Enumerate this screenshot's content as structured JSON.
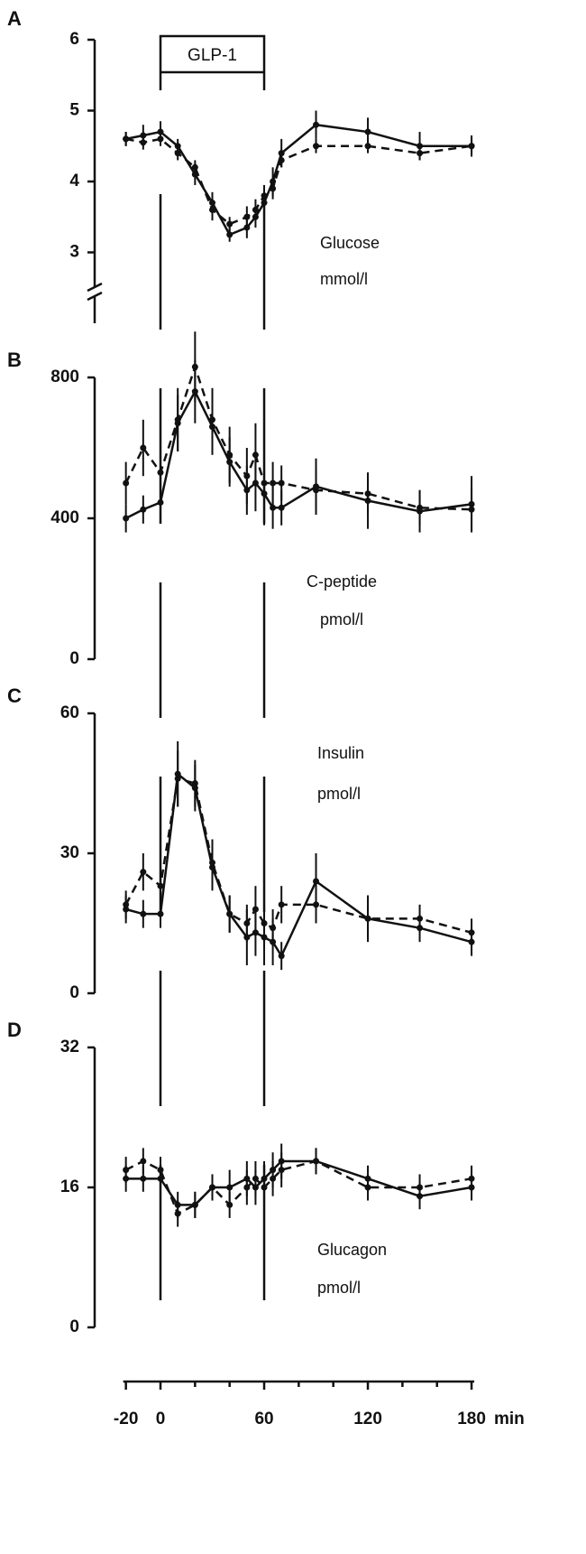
{
  "chart_data": [
    {
      "type": "line",
      "panel_label": "A",
      "ylabel_lines": [
        "Glucose",
        "mmol/l"
      ],
      "x": [
        -20,
        -10,
        0,
        10,
        20,
        30,
        40,
        50,
        55,
        60,
        65,
        70,
        90,
        120,
        150,
        180
      ],
      "xlim": [
        -20,
        180
      ],
      "ylim": [
        2,
        6
      ],
      "yticks": [
        3,
        4,
        5,
        6
      ],
      "axis_break": true,
      "series": [
        {
          "line_style": "solid",
          "color": "#111",
          "values": [
            4.6,
            4.65,
            4.7,
            4.5,
            4.1,
            3.7,
            3.25,
            3.35,
            3.5,
            3.7,
            4.0,
            4.4,
            4.8,
            4.7,
            4.5,
            4.5
          ],
          "errors": [
            0.1,
            0.15,
            0.15,
            0.1,
            0.15,
            0.15,
            0.1,
            0.15,
            0.15,
            0.2,
            0.2,
            0.2,
            0.2,
            0.2,
            0.2,
            0.15
          ]
        },
        {
          "line_style": "dashed",
          "color": "#111",
          "values": [
            4.6,
            4.55,
            4.6,
            4.4,
            4.2,
            3.6,
            3.4,
            3.5,
            3.6,
            3.8,
            3.9,
            4.3,
            4.5,
            4.5,
            4.4,
            4.5
          ],
          "errors": [
            0.1,
            0.1,
            0.1,
            0.1,
            0.1,
            0.15,
            0.1,
            0.15,
            0.15,
            0.15,
            0.15,
            0.1,
            0.1,
            0.1,
            0.1,
            0.1
          ]
        }
      ]
    },
    {
      "type": "line",
      "panel_label": "B",
      "ylabel_lines": [
        "C-peptide",
        "pmol/l"
      ],
      "x": [
        -20,
        -10,
        0,
        10,
        20,
        30,
        40,
        50,
        55,
        60,
        65,
        70,
        90,
        120,
        150,
        180
      ],
      "xlim": [
        -20,
        180
      ],
      "ylim": [
        0,
        800
      ],
      "yticks": [
        0,
        400,
        800
      ],
      "series": [
        {
          "line_style": "solid",
          "color": "#111",
          "values": [
            400,
            425,
            445,
            670,
            760,
            660,
            560,
            480,
            500,
            470,
            430,
            430,
            490,
            450,
            420,
            440
          ],
          "errors": [
            40,
            40,
            60,
            80,
            90,
            80,
            70,
            70,
            80,
            90,
            60,
            50,
            80,
            80,
            60,
            80
          ]
        },
        {
          "line_style": "dashed",
          "color": "#111",
          "values": [
            500,
            600,
            530,
            680,
            830,
            680,
            580,
            520,
            580,
            500,
            500,
            500,
            480,
            470,
            430,
            425
          ],
          "errors": [
            60,
            80,
            60,
            90,
            100,
            90,
            80,
            80,
            90,
            90,
            60,
            50,
            60,
            60,
            50,
            60
          ]
        }
      ]
    },
    {
      "type": "line",
      "panel_label": "C",
      "ylabel_lines": [
        "Insulin",
        "pmol/l"
      ],
      "x": [
        -20,
        -10,
        0,
        10,
        20,
        30,
        40,
        50,
        55,
        60,
        65,
        70,
        90,
        120,
        150,
        180
      ],
      "xlim": [
        -20,
        180
      ],
      "ylim": [
        0,
        60
      ],
      "yticks": [
        0,
        30,
        60
      ],
      "series": [
        {
          "line_style": "solid",
          "color": "#111",
          "values": [
            18,
            17,
            17,
            47,
            44,
            27,
            17,
            12,
            13,
            12,
            11,
            8,
            24,
            16,
            14,
            11
          ],
          "errors": [
            3,
            3,
            3,
            7,
            5,
            5,
            4,
            6,
            5,
            6,
            5,
            3,
            6,
            5,
            3,
            3
          ]
        },
        {
          "line_style": "dashed",
          "color": "#111",
          "values": [
            19,
            26,
            23,
            46,
            45,
            28,
            17,
            15,
            18,
            15,
            14,
            19,
            19,
            16,
            16,
            13
          ],
          "errors": [
            3,
            4,
            4,
            6,
            5,
            5,
            4,
            4,
            5,
            5,
            4,
            4,
            4,
            4,
            3,
            3
          ]
        }
      ]
    },
    {
      "type": "line",
      "panel_label": "D",
      "ylabel_lines": [
        "Glucagon",
        "pmol/l"
      ],
      "x": [
        -20,
        -10,
        0,
        10,
        20,
        30,
        40,
        50,
        55,
        60,
        65,
        70,
        90,
        120,
        150,
        180
      ],
      "xlim": [
        -20,
        180
      ],
      "ylim": [
        0,
        32
      ],
      "yticks": [
        0,
        16,
        32
      ],
      "series": [
        {
          "line_style": "solid",
          "color": "#111",
          "values": [
            17,
            17,
            17,
            14,
            14,
            16,
            16,
            17,
            16,
            17,
            18,
            19,
            19,
            17,
            15,
            16
          ],
          "errors": [
            1.5,
            1.5,
            1.5,
            1.5,
            1.5,
            1.5,
            2,
            2,
            2,
            2,
            2,
            2,
            1.5,
            1.5,
            1.5,
            1.5
          ]
        },
        {
          "line_style": "dashed",
          "color": "#111",
          "values": [
            18,
            19,
            18,
            13,
            14,
            16,
            14,
            16,
            17,
            16,
            17,
            18,
            19,
            16,
            16,
            17
          ],
          "errors": [
            1.5,
            1.5,
            1.5,
            1.5,
            1.5,
            1.5,
            1.5,
            2,
            2,
            2,
            2,
            2,
            1.5,
            1.5,
            1.5,
            1.5
          ]
        }
      ]
    }
  ],
  "x_axis": {
    "xlim": [
      -20,
      180
    ],
    "xticks": [
      -20,
      0,
      60,
      120,
      180
    ],
    "minor_ticks": [
      20,
      40,
      80,
      100,
      140,
      160
    ],
    "unit_label": "min"
  },
  "interval": {
    "label": "GLP-1",
    "start": 0,
    "end": 60
  }
}
